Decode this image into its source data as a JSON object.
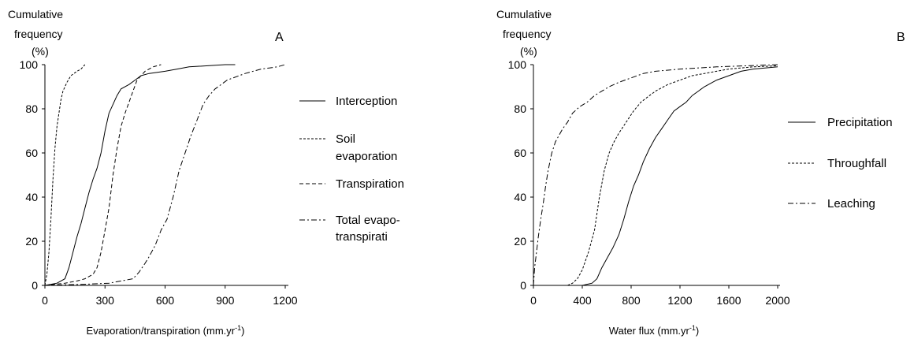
{
  "chart_data": [
    {
      "panel_letter": "A",
      "type": "line",
      "ylabel_lines": [
        "Cumulative",
        "frequency",
        "(%)"
      ],
      "xlabel": "Evaporation/transpiration (mm.yr",
      "xlabel_sup": "-1",
      "xlabel_close": ")",
      "xlim": [
        0,
        1200
      ],
      "ylim": [
        0,
        100
      ],
      "xticks": [
        0,
        300,
        600,
        900,
        1200
      ],
      "yticks": [
        0,
        20,
        40,
        60,
        80,
        100
      ],
      "grid": false,
      "legend_position": "right",
      "series": [
        {
          "name": "Interception",
          "legend_lines": [
            "Interception"
          ],
          "dash": "solid",
          "points": [
            [
              0,
              0
            ],
            [
              60,
              1
            ],
            [
              100,
              3
            ],
            [
              120,
              8
            ],
            [
              140,
              15
            ],
            [
              160,
              22
            ],
            [
              180,
              28
            ],
            [
              200,
              35
            ],
            [
              220,
              42
            ],
            [
              240,
              48
            ],
            [
              260,
              53
            ],
            [
              280,
              60
            ],
            [
              300,
              70
            ],
            [
              320,
              78
            ],
            [
              340,
              82
            ],
            [
              360,
              86
            ],
            [
              380,
              89
            ],
            [
              420,
              91
            ],
            [
              450,
              93
            ],
            [
              480,
              95
            ],
            [
              520,
              96
            ],
            [
              600,
              97
            ],
            [
              660,
              98
            ],
            [
              720,
              99
            ],
            [
              900,
              100
            ],
            [
              950,
              100
            ]
          ]
        },
        {
          "name": "Soil evaporation",
          "legend_lines": [
            "Soil",
            "evaporation"
          ],
          "dash": "short",
          "points": [
            [
              0,
              0
            ],
            [
              10,
              5
            ],
            [
              20,
              15
            ],
            [
              30,
              30
            ],
            [
              40,
              48
            ],
            [
              50,
              62
            ],
            [
              60,
              72
            ],
            [
              70,
              78
            ],
            [
              80,
              84
            ],
            [
              90,
              88
            ],
            [
              110,
              92
            ],
            [
              130,
              95
            ],
            [
              160,
              97
            ],
            [
              180,
              98
            ],
            [
              200,
              100
            ]
          ]
        },
        {
          "name": "Transpiration",
          "legend_lines": [
            "Transpiration"
          ],
          "dash": "medium",
          "points": [
            [
              0,
              0
            ],
            [
              100,
              1
            ],
            [
              160,
              2
            ],
            [
              200,
              3
            ],
            [
              240,
              5
            ],
            [
              260,
              8
            ],
            [
              280,
              15
            ],
            [
              300,
              25
            ],
            [
              320,
              35
            ],
            [
              340,
              50
            ],
            [
              360,
              62
            ],
            [
              380,
              72
            ],
            [
              400,
              78
            ],
            [
              420,
              83
            ],
            [
              440,
              88
            ],
            [
              460,
              93
            ],
            [
              480,
              95
            ],
            [
              500,
              97
            ],
            [
              540,
              99
            ],
            [
              580,
              100
            ]
          ]
        },
        {
          "name": "Total evapo-transpirati",
          "legend_lines": [
            "Total evapo-",
            "transpirati"
          ],
          "dash": "dashdot",
          "points": [
            [
              0,
              0
            ],
            [
              200,
              0.5
            ],
            [
              320,
              1
            ],
            [
              380,
              2
            ],
            [
              440,
              3
            ],
            [
              470,
              6
            ],
            [
              500,
              10
            ],
            [
              520,
              13
            ],
            [
              550,
              18
            ],
            [
              580,
              25
            ],
            [
              610,
              30
            ],
            [
              640,
              40
            ],
            [
              670,
              52
            ],
            [
              700,
              60
            ],
            [
              730,
              68
            ],
            [
              760,
              75
            ],
            [
              790,
              82
            ],
            [
              820,
              86
            ],
            [
              850,
              89
            ],
            [
              880,
              91
            ],
            [
              910,
              93
            ],
            [
              940,
              94
            ],
            [
              970,
              95
            ],
            [
              1000,
              96
            ],
            [
              1040,
              97
            ],
            [
              1080,
              98
            ],
            [
              1120,
              98.5
            ],
            [
              1160,
              99
            ],
            [
              1200,
              100
            ]
          ]
        }
      ]
    },
    {
      "panel_letter": "B",
      "type": "line",
      "ylabel_lines": [
        "Cumulative",
        "frequency",
        "(%)"
      ],
      "xlabel": "Water flux (mm.yr",
      "xlabel_sup": "-1",
      "xlabel_close": ")",
      "xlim": [
        0,
        2000
      ],
      "ylim": [
        0,
        100
      ],
      "xticks": [
        0,
        400,
        800,
        1200,
        1600,
        2000
      ],
      "yticks": [
        0,
        20,
        40,
        60,
        80,
        100
      ],
      "grid": false,
      "legend_position": "right",
      "series": [
        {
          "name": "Precipitation",
          "legend_lines": [
            "Precipitation"
          ],
          "dash": "solid",
          "points": [
            [
              400,
              0
            ],
            [
              480,
              1
            ],
            [
              520,
              3
            ],
            [
              560,
              8
            ],
            [
              600,
              12
            ],
            [
              650,
              17
            ],
            [
              700,
              23
            ],
            [
              740,
              30
            ],
            [
              780,
              38
            ],
            [
              820,
              45
            ],
            [
              860,
              50
            ],
            [
              900,
              56
            ],
            [
              950,
              62
            ],
            [
              1000,
              67
            ],
            [
              1050,
              71
            ],
            [
              1100,
              75
            ],
            [
              1150,
              79
            ],
            [
              1200,
              81
            ],
            [
              1250,
              83
            ],
            [
              1300,
              86
            ],
            [
              1350,
              88
            ],
            [
              1400,
              90
            ],
            [
              1500,
              93
            ],
            [
              1600,
              95
            ],
            [
              1700,
              97
            ],
            [
              1800,
              98
            ],
            [
              2000,
              99
            ]
          ]
        },
        {
          "name": "Throughfall",
          "legend_lines": [
            "Throughfall"
          ],
          "dash": "short",
          "points": [
            [
              280,
              0
            ],
            [
              320,
              1
            ],
            [
              360,
              3
            ],
            [
              400,
              7
            ],
            [
              450,
              15
            ],
            [
              500,
              25
            ],
            [
              540,
              40
            ],
            [
              580,
              52
            ],
            [
              620,
              60
            ],
            [
              660,
              65
            ],
            [
              700,
              69
            ],
            [
              760,
              74
            ],
            [
              820,
              79
            ],
            [
              880,
              83
            ],
            [
              950,
              86
            ],
            [
              1000,
              88
            ],
            [
              1100,
              91
            ],
            [
              1200,
              93
            ],
            [
              1300,
              95
            ],
            [
              1400,
              96
            ],
            [
              1500,
              97
            ],
            [
              1600,
              98
            ],
            [
              1800,
              99
            ],
            [
              2000,
              99.5
            ]
          ]
        },
        {
          "name": "Leaching",
          "legend_lines": [
            "Leaching"
          ],
          "dash": "dashdot",
          "points": [
            [
              0,
              0
            ],
            [
              10,
              8
            ],
            [
              25,
              15
            ],
            [
              40,
              22
            ],
            [
              60,
              30
            ],
            [
              80,
              37
            ],
            [
              100,
              45
            ],
            [
              120,
              52
            ],
            [
              150,
              60
            ],
            [
              180,
              65
            ],
            [
              210,
              68
            ],
            [
              240,
              71
            ],
            [
              280,
              74
            ],
            [
              320,
              78
            ],
            [
              380,
              81
            ],
            [
              440,
              83
            ],
            [
              500,
              86
            ],
            [
              560,
              88
            ],
            [
              620,
              90
            ],
            [
              700,
              92
            ],
            [
              800,
              94
            ],
            [
              900,
              96
            ],
            [
              1000,
              97
            ],
            [
              1200,
              98
            ],
            [
              1500,
              99
            ],
            [
              2000,
              100
            ]
          ]
        }
      ]
    }
  ]
}
